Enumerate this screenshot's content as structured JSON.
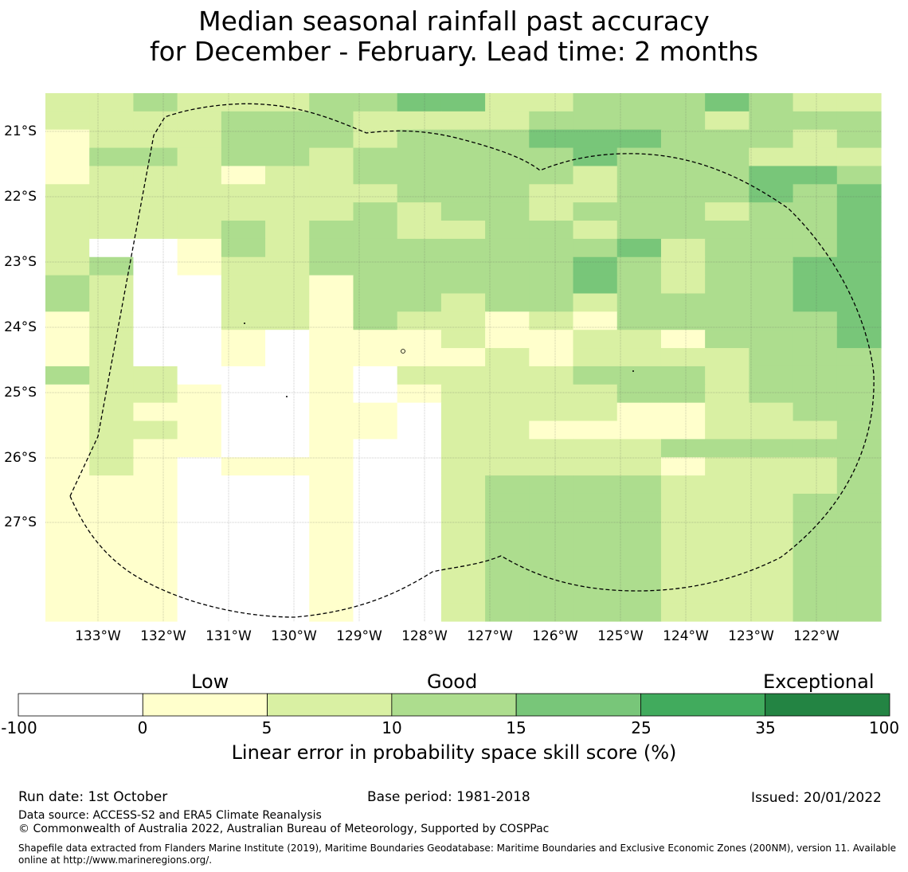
{
  "title": {
    "line1": "Median seasonal rainfall past accuracy",
    "line2": "for December - February. Lead time: 2 months"
  },
  "map": {
    "lat_labels": [
      "21°S",
      "22°S",
      "23°S",
      "24°S",
      "25°S",
      "26°S",
      "27°S"
    ],
    "lon_labels": [
      "133°W",
      "132°W",
      "131°W",
      "130°W",
      "129°W",
      "128°W",
      "127°W",
      "126°W",
      "125°W",
      "124°W",
      "123°W",
      "122°W"
    ],
    "boundary_style": "dashed",
    "colors": {
      "below_0": "#ffffff",
      "0_5": "#ffffcc",
      "5_10": "#d9f0a3",
      "10_15": "#addd8e",
      "15_25": "#78c679",
      "25_35": "#41ab5d",
      "35_100": "#238443"
    },
    "grid": {
      "legend": "row-major skill category codes: 0 = <0 (white), 1 = 0-5, 2 = 5-10, 3 = 10-15, 4 = 15-25, 5 = 25-35, 6 = 35-100",
      "rows": [
        "2232223344223334322",
        "2222333222233332333",
        "1222333233344433323",
        "1332332333334333222",
        "1222122333332333443",
        "2222222233322333434",
        "2222222323323332334",
        "2222323322332333334",
        "2001323333333423334",
        "2301223333334323344",
        "3200221333334323344",
        "3200221332332333344",
        "1200221322121333334",
        "1200101112112213334",
        "1200101111212222333",
        "3220001022223332333",
        "1221001012222332333",
        "1211001102222112233",
        "1221001102211112223",
        "1211001002222233333",
        "1210111002222212223",
        "1110001002333322223",
        "1110001002333322233",
        "1110001002333322233",
        "1110001002333322233",
        "1110001002333322233",
        "1110001002333322233",
        "1110001002333322233",
        "1110001002333322233"
      ]
    }
  },
  "colorbar": {
    "categories": [
      "Low",
      "Good",
      "Exceptional"
    ],
    "ticks": [
      "-100",
      "0",
      "5",
      "10",
      "15",
      "25",
      "35",
      "100"
    ],
    "colors": [
      "#ffffff",
      "#ffffcc",
      "#d9f0a3",
      "#addd8e",
      "#78c679",
      "#41ab5d",
      "#238443"
    ],
    "label": "Linear error in probability space skill score (%)"
  },
  "footer": {
    "run_date": "Run date: 1st October",
    "base_period": "Base period: 1981-2018",
    "issued": "Issued: 20/01/2022",
    "data_source": "Data source: ACCESS-S2 and ERA5 Climate Reanalysis",
    "copyright": "© Commonwealth of Australia 2022, Australian Bureau of Meteorology, Supported by COSPPac",
    "shapefile": "Shapefile data extracted from Flanders Marine Institute (2019), Maritime Boundaries Geodatabase: Maritime Boundaries and Exclusive Economic Zones (200NM), version 11. Available online at http://www.marineregions.org/."
  }
}
